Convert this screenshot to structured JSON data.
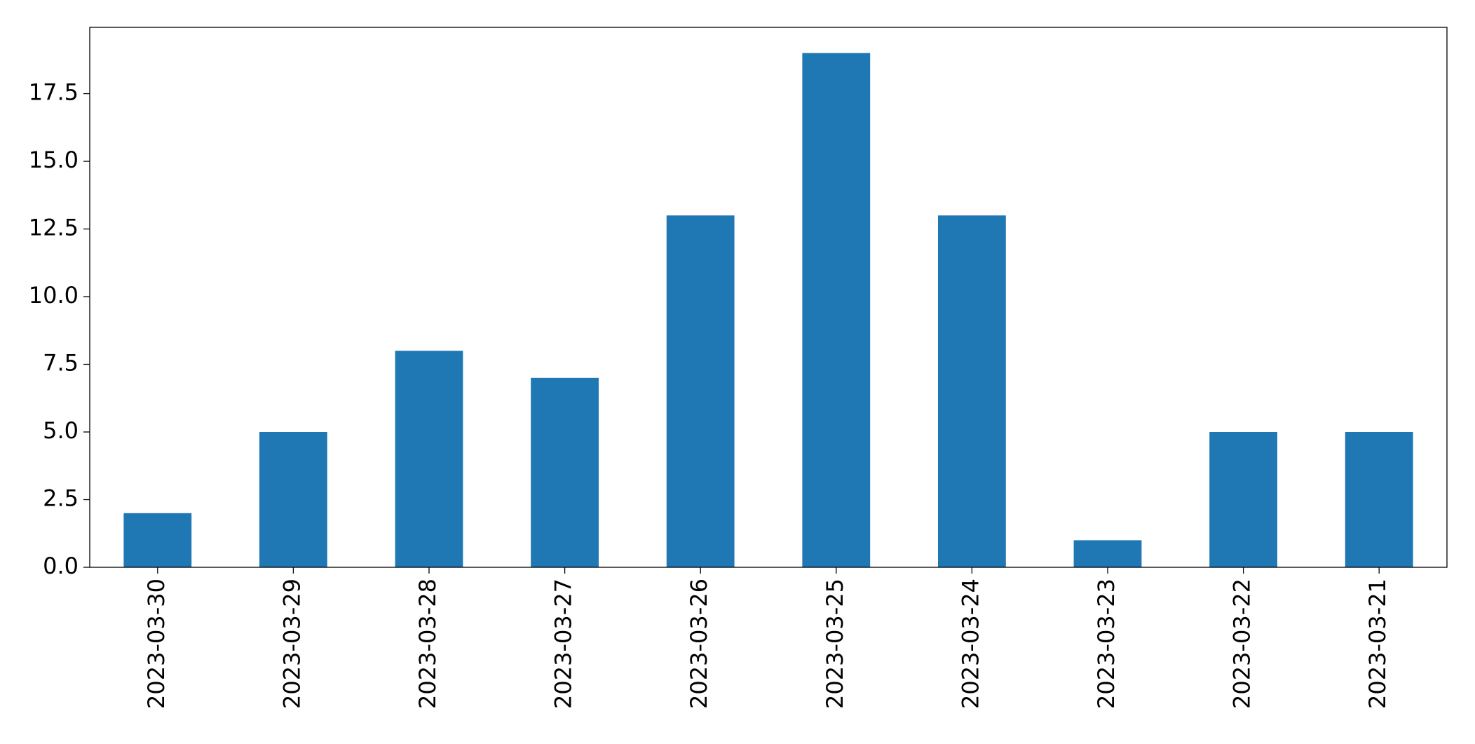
{
  "chart_data": {
    "type": "bar",
    "categories": [
      "2023-03-30",
      "2023-03-29",
      "2023-03-28",
      "2023-03-27",
      "2023-03-26",
      "2023-03-25",
      "2023-03-24",
      "2023-03-23",
      "2023-03-22",
      "2023-03-21"
    ],
    "values": [
      2,
      5,
      8,
      7,
      13,
      19,
      13,
      1,
      5,
      5
    ],
    "color": "#1f77b4",
    "ylim": [
      0,
      19.95
    ],
    "yticks": [
      {
        "value": 0,
        "label": "0.0"
      },
      {
        "value": 2.5,
        "label": "2.5"
      },
      {
        "value": 5,
        "label": "5.0"
      },
      {
        "value": 7.5,
        "label": "7.5"
      },
      {
        "value": 10,
        "label": "10.0"
      },
      {
        "value": 12.5,
        "label": "12.5"
      },
      {
        "value": 15,
        "label": "15.0"
      },
      {
        "value": 17.5,
        "label": "17.5"
      }
    ],
    "grid": false
  }
}
